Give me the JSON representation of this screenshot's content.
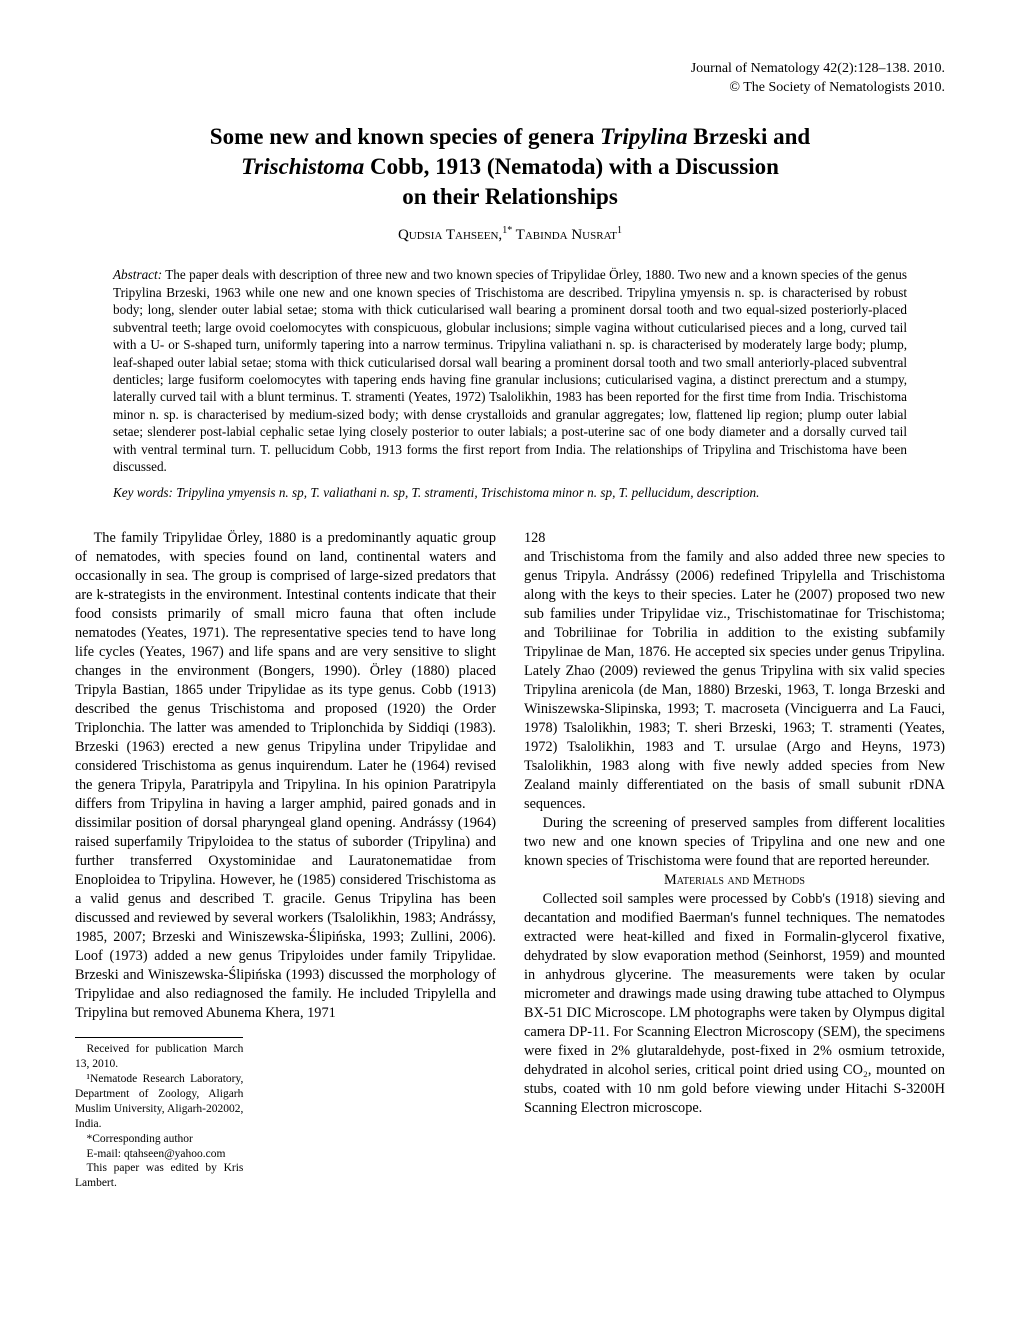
{
  "journal": {
    "citation": "Journal of Nematology 42(2):128–138. 2010.",
    "copyright": "© The Society of Nematologists 2010."
  },
  "title": {
    "line1_pre": "Some new and known species of genera ",
    "genus1": "Tripylina",
    "line1_mid": " Brzeski and",
    "genus2": "Trischistoma",
    "line2_mid": " Cobb, 1913 (Nematoda) with a Discussion",
    "line3": "on their Relationships"
  },
  "authors": {
    "text": "Qudsia Tahseen,",
    "sup1": "1*",
    "name2": " Tabinda Nusrat",
    "sup2": "1"
  },
  "abstract": {
    "label": "Abstract:",
    "text": " The paper deals with description of three new and two known species of Tripylidae Örley, 1880. Two new and a known species of the genus Tripylina Brzeski, 1963 while one new and one known species of Trischistoma are described. Tripylina ymyensis n. sp. is characterised by robust body; long, slender outer labial setae; stoma with thick cuticularised wall bearing a prominent dorsal tooth and two equal-sized posteriorly-placed subventral teeth; large ovoid coelomocytes with conspicuous, globular inclusions; simple vagina without cuticularised pieces and a long, curved tail with a U- or S-shaped turn, uniformly tapering into a narrow terminus. Tripylina valiathani n. sp. is characterised by moderately large body; plump, leaf-shaped outer labial setae; stoma with thick cuticularised dorsal wall bearing a prominent dorsal tooth and two small anteriorly-placed subventral denticles; large fusiform coelomocytes with tapering ends having fine granular inclusions; cuticularised vagina, a distinct prerectum and a stumpy, laterally curved tail with a blunt terminus. T. stramenti (Yeates, 1972) Tsalolikhin, 1983 has been reported for the first time from India. Trischistoma minor n. sp. is characterised by medium-sized body; with dense crystalloids and granular aggregates; low, flattened lip region; plump outer labial setae; slenderer post-labial cephalic setae lying closely posterior to outer labials; a post-uterine sac of one body diameter and a dorsally curved tail with ventral terminal turn. T. pellucidum Cobb, 1913 forms the first report from India. The relationships of Tripylina and Trischistoma have been discussed."
  },
  "keywords": {
    "label": "Key words:",
    "text": " Tripylina ymyensis n. sp, T. valiathani n. sp, T. stramenti, Trischistoma minor n. sp, T. pellucidum, description."
  },
  "body": {
    "p1": "The family Tripylidae Örley, 1880 is a predominantly aquatic group of nematodes, with species found on land, continental waters and occasionally in sea. The group is comprised of large-sized predators that are k-strategists in the environment. Intestinal contents indicate that their food consists primarily of small micro fauna that often include nematodes (Yeates, 1971). The representative species tend to have long life cycles (Yeates, 1967) and life spans and are very sensitive to slight changes in the environment (Bongers, 1990). Örley (1880) placed Tripyla Bastian, 1865 under Tripylidae as its type genus. Cobb (1913) described the genus Trischistoma and proposed (1920) the Order Triplonchia. The latter was amended to Triplonchida by Siddiqi (1983). Brzeski (1963) erected a new genus Tripylina under Tripylidae and considered Trischistoma as genus inquirendum. Later he (1964) revised the genera Tripyla, Paratripyla and Tripylina. In his opinion Paratripyla differs from Tripylina in having a larger amphid, paired gonads and in dissimilar position of dorsal pharyngeal gland opening. Andrássy (1964) raised superfamily Tripyloidea to the status of suborder (Tripylina) and further transferred Oxystominidae and Lauratonematidae from Enoploidea to Tripylina. However, he (1985) considered Trischistoma as a valid genus and described T. gracile. Genus Tripylina has been discussed and reviewed by several workers (Tsalolikhin, 1983; Andrássy, 1985, 2007; Brzeski and Winiszewska-Ślipińska, 1993; Zullini, 2006). Loof (1973) added a new genus Tripyloides under family Tripylidae. Brzeski and Winiszewska-Ślipińska (1993) discussed the morphology of Tripylidae and also rediagnosed the family. He included Tripylella and Tripylina but removed Abunema Khera, 1971",
    "p1b": "and Trischistoma from the family and also added three new species to genus Tripyla. Andrássy (2006) redefined Tripylella and Trischistoma along with the keys to their species. Later he (2007) proposed two new sub families under Tripylidae viz., Trischistomatinae for Trischistoma; and Tobriliinae for Tobrilia in addition to the existing subfamily Tripylinae de Man, 1876. He accepted six species under genus Tripylina. Lately Zhao (2009) reviewed the genus Tripylina with six valid species Tripylina arenicola (de Man, 1880) Brzeski, 1963, T. longa Brzeski and Winiszewska-Slipinska, 1993; T. macroseta (Vinciguerra and La Fauci, 1978) Tsalolikhin, 1983; T. sheri Brzeski, 1963; T. stramenti (Yeates, 1972) Tsalolikhin, 1983 and T. ursulae (Argo and Heyns, 1973) Tsalolikhin, 1983 along with five newly added species from New Zealand mainly differentiated on the basis of small subunit rDNA sequences.",
    "p2": "During the screening of preserved samples from different localities two new and one known species of Tripylina and one new and one known species of Trischistoma were found that are reported hereunder.",
    "methods_heading": "Materials and Methods",
    "p3": "Collected soil samples were processed by Cobb's (1918) sieving and decantation and modified Baerman's funnel techniques. The nematodes extracted were heat-killed and fixed in Formalin-glycerol fixative, dehydrated by slow evaporation method (Seinhorst, 1959) and mounted in anhydrous glycerine. The measurements were taken by ocular micrometer and drawings made using drawing tube attached to Olympus BX-51 DIC Microscope. LM photographs were taken by Olympus digital camera DP-11. For Scanning Electron Microscopy (SEM), the specimens were fixed in 2% glutaraldehyde, post-fixed in 2% osmium tetroxide, dehydrated in alcohol series, critical point dried using CO₂, mounted on stubs, coated with 10 nm gold before viewing under Hitachi S-3200H Scanning Electron microscope."
  },
  "footnotes": {
    "received": "Received for publication March 13, 2010.",
    "affiliation": "¹Nematode Research Laboratory, Department of Zoology, Aligarh Muslim University, Aligarh-202002, India.",
    "corresponding": "*Corresponding author",
    "email": "E-mail: qtahseen@yahoo.com",
    "editor": "This paper was edited by Kris Lambert."
  },
  "page_number": "128"
}
